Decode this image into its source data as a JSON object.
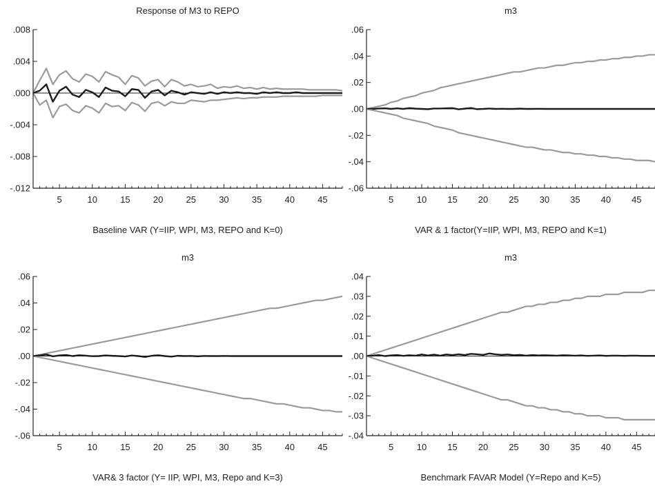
{
  "colors": {
    "irf": "#1a1a1a",
    "band": "#9a9a9a",
    "axis": "#222222",
    "zero": "#222222"
  },
  "chart_data": [
    {
      "type": "line",
      "title": "Response of M3 to REPO",
      "caption": "Baseline VAR (Y=IIP, WPI, M3, REPO and K=0)",
      "ylim": [
        -0.012,
        0.008
      ],
      "yticks": [
        ".008",
        ".004",
        ".000",
        "-.004",
        "-.008",
        "-.012"
      ],
      "ytick_values": [
        0.008,
        0.004,
        0.0,
        -0.004,
        -0.008,
        -0.012
      ],
      "xlim": [
        1,
        48
      ],
      "xticks": [
        "5",
        "10",
        "15",
        "20",
        "25",
        "30",
        "35",
        "40",
        "45"
      ],
      "series": [
        {
          "role": "band",
          "values": [
            0.0,
            0.0016,
            0.0031,
            0.0011,
            0.0023,
            0.0028,
            0.0018,
            0.0014,
            0.0024,
            0.0021,
            0.0014,
            0.0027,
            0.0023,
            0.002,
            0.0011,
            0.0022,
            0.0019,
            0.0009,
            0.0015,
            0.0017,
            0.0008,
            0.0017,
            0.0014,
            0.0009,
            0.0011,
            0.0008,
            0.0009,
            0.0011,
            0.0006,
            0.0008,
            0.0007,
            0.0009,
            0.0006,
            0.0007,
            0.0005,
            0.0007,
            0.0005,
            0.0006,
            0.0005,
            0.0005,
            0.0005,
            0.0005,
            0.0004,
            0.0004,
            0.0004,
            0.0004,
            0.0004,
            0.0003
          ]
        },
        {
          "role": "irf",
          "values": [
            0.0,
            0.0003,
            0.0011,
            -0.0011,
            0.0003,
            0.0008,
            -0.0002,
            -0.0005,
            0.0004,
            0.0001,
            -0.0005,
            0.0007,
            0.0003,
            0.0002,
            -0.0004,
            0.0005,
            0.0004,
            -0.0006,
            0.0002,
            0.0004,
            -0.0003,
            0.0003,
            0.0001,
            -0.0002,
            0.0001,
            0.0,
            -0.0001,
            0.0001,
            -0.0001,
            0.0001,
            0.0,
            0.0001,
            0.0,
            0.0,
            -0.0001,
            0.0001,
            0.0,
            0.0001,
            0.0,
            0.0,
            0.0001,
            0.0,
            0.0,
            0.0,
            0.0,
            0.0,
            0.0,
            0.0
          ]
        },
        {
          "role": "band",
          "values": [
            0.0,
            -0.0015,
            -0.0009,
            -0.0031,
            -0.0017,
            -0.0014,
            -0.0022,
            -0.0025,
            -0.0016,
            -0.0019,
            -0.0025,
            -0.0013,
            -0.0017,
            -0.0016,
            -0.0022,
            -0.0012,
            -0.0015,
            -0.0023,
            -0.0013,
            -0.0011,
            -0.0016,
            -0.0011,
            -0.0013,
            -0.0013,
            -0.0009,
            -0.001,
            -0.0011,
            -0.0009,
            -0.0009,
            -0.0008,
            -0.0007,
            -0.0006,
            -0.0007,
            -0.0006,
            -0.0006,
            -0.0005,
            -0.0005,
            -0.0005,
            -0.0004,
            -0.0004,
            -0.0004,
            -0.0004,
            -0.0004,
            -0.0004,
            -0.0003,
            -0.0003,
            -0.0003,
            -0.0003
          ]
        }
      ]
    },
    {
      "type": "line",
      "title": "m3",
      "caption": "VAR & 1 factor(Y=IIP, WPI, M3, REPO and K=1)",
      "ylim": [
        -0.06,
        0.06
      ],
      "yticks": [
        ".06",
        ".04",
        ".02",
        ".00",
        "-.02",
        "-.04",
        "-.06"
      ],
      "ytick_values": [
        0.06,
        0.04,
        0.02,
        0.0,
        -0.02,
        -0.04,
        -0.06
      ],
      "xlim": [
        1,
        48
      ],
      "xticks": [
        "5",
        "10",
        "15",
        "20",
        "25",
        "30",
        "35",
        "40",
        "45"
      ],
      "series": [
        {
          "role": "band",
          "values": [
            0.0,
            0.001,
            0.002,
            0.003,
            0.005,
            0.006,
            0.008,
            0.009,
            0.01,
            0.012,
            0.013,
            0.014,
            0.016,
            0.017,
            0.018,
            0.019,
            0.02,
            0.021,
            0.022,
            0.023,
            0.024,
            0.025,
            0.026,
            0.027,
            0.028,
            0.028,
            0.029,
            0.03,
            0.031,
            0.031,
            0.032,
            0.033,
            0.033,
            0.034,
            0.035,
            0.035,
            0.036,
            0.036,
            0.037,
            0.037,
            0.038,
            0.038,
            0.039,
            0.039,
            0.04,
            0.04,
            0.041,
            0.041
          ]
        },
        {
          "role": "irf",
          "values": [
            0.0,
            0.0,
            0.0003,
            0.0005,
            0.0,
            0.0004,
            0.0,
            0.0006,
            0.0002,
            0.0,
            -0.0002,
            0.0003,
            0.0003,
            0.0005,
            0.0006,
            -0.0003,
            0.0002,
            0.0007,
            -0.0002,
            0.0,
            0.0003,
            0.0,
            0.0001,
            0.0,
            0.0,
            0.0002,
            0.0,
            0.0,
            0.0001,
            0.0,
            0.0,
            0.0,
            0.0,
            0.0,
            0.0,
            0.0,
            0.0,
            0.0,
            0.0,
            0.0,
            0.0,
            0.0,
            0.0,
            0.0,
            0.0,
            0.0,
            0.0,
            0.0
          ]
        },
        {
          "role": "band",
          "values": [
            0.0,
            -0.001,
            -0.002,
            -0.003,
            -0.004,
            -0.005,
            -0.007,
            -0.008,
            -0.009,
            -0.01,
            -0.011,
            -0.013,
            -0.014,
            -0.015,
            -0.016,
            -0.018,
            -0.019,
            -0.02,
            -0.021,
            -0.022,
            -0.023,
            -0.024,
            -0.025,
            -0.026,
            -0.027,
            -0.028,
            -0.029,
            -0.029,
            -0.03,
            -0.031,
            -0.031,
            -0.032,
            -0.033,
            -0.033,
            -0.034,
            -0.034,
            -0.035,
            -0.035,
            -0.036,
            -0.036,
            -0.037,
            -0.037,
            -0.038,
            -0.038,
            -0.039,
            -0.039,
            -0.039,
            -0.04
          ]
        }
      ]
    },
    {
      "type": "line",
      "title": "m3",
      "caption": "VAR& 3 factor (Y= IIP, WPI, M3, Repo and K=3)",
      "ylim": [
        -0.06,
        0.06
      ],
      "yticks": [
        ".06",
        ".04",
        ".02",
        ".00",
        "-.02",
        "-.04",
        "-.06"
      ],
      "ytick_values": [
        0.06,
        0.04,
        0.02,
        0.0,
        -0.02,
        -0.04,
        -0.06
      ],
      "xlim": [
        1,
        48
      ],
      "xticks": [
        "5",
        "10",
        "15",
        "20",
        "25",
        "30",
        "35",
        "40",
        "45"
      ],
      "series": [
        {
          "role": "band",
          "values": [
            0.0,
            0.001,
            0.002,
            0.003,
            0.004,
            0.005,
            0.006,
            0.007,
            0.008,
            0.009,
            0.01,
            0.011,
            0.012,
            0.013,
            0.014,
            0.015,
            0.016,
            0.017,
            0.018,
            0.019,
            0.02,
            0.021,
            0.022,
            0.023,
            0.024,
            0.025,
            0.026,
            0.027,
            0.028,
            0.029,
            0.03,
            0.031,
            0.032,
            0.033,
            0.034,
            0.035,
            0.036,
            0.036,
            0.037,
            0.038,
            0.039,
            0.04,
            0.041,
            0.042,
            0.042,
            0.043,
            0.044,
            0.045
          ]
        },
        {
          "role": "irf",
          "values": [
            0.0,
            0.0005,
            0.0012,
            -0.0002,
            0.0005,
            0.0008,
            0.0,
            0.0006,
            0.0003,
            -0.0001,
            0.0,
            0.0005,
            0.0002,
            0.0,
            -0.0003,
            0.0004,
            0.0,
            -0.0007,
            0.0002,
            0.0006,
            0.0,
            -0.0004,
            0.0002,
            0.0,
            0.0001,
            -0.0002,
            0.0001,
            0.0,
            0.0,
            0.0001,
            0.0,
            0.0,
            0.0,
            0.0,
            0.0,
            0.0,
            0.0,
            0.0,
            0.0,
            0.0,
            0.0,
            0.0,
            0.0,
            0.0,
            0.0,
            0.0,
            0.0,
            0.0
          ]
        },
        {
          "role": "band",
          "values": [
            0.0,
            -0.001,
            -0.002,
            -0.003,
            -0.004,
            -0.005,
            -0.006,
            -0.007,
            -0.008,
            -0.009,
            -0.01,
            -0.011,
            -0.012,
            -0.013,
            -0.014,
            -0.015,
            -0.016,
            -0.017,
            -0.018,
            -0.019,
            -0.02,
            -0.021,
            -0.022,
            -0.023,
            -0.024,
            -0.025,
            -0.026,
            -0.027,
            -0.028,
            -0.029,
            -0.03,
            -0.031,
            -0.032,
            -0.032,
            -0.033,
            -0.034,
            -0.035,
            -0.036,
            -0.036,
            -0.037,
            -0.038,
            -0.039,
            -0.039,
            -0.04,
            -0.041,
            -0.041,
            -0.042,
            -0.042
          ]
        }
      ]
    },
    {
      "type": "line",
      "title": "m3",
      "caption": "Benchmark FAVAR Model (Y=Repo and K=5)",
      "ylim": [
        -0.04,
        0.04
      ],
      "yticks": [
        ".04",
        ".03",
        ".02",
        ".01",
        ".00",
        "-.01",
        "-.02",
        "-.03",
        "-.04"
      ],
      "ytick_values": [
        0.04,
        0.03,
        0.02,
        0.01,
        0.0,
        -0.01,
        -0.02,
        -0.03,
        -0.04
      ],
      "xlim": [
        1,
        48
      ],
      "xticks": [
        "5",
        "10",
        "15",
        "20",
        "25",
        "30",
        "35",
        "40",
        "45"
      ],
      "series": [
        {
          "role": "band",
          "values": [
            0.0,
            0.001,
            0.002,
            0.003,
            0.004,
            0.005,
            0.006,
            0.007,
            0.008,
            0.009,
            0.01,
            0.011,
            0.012,
            0.013,
            0.014,
            0.015,
            0.016,
            0.017,
            0.018,
            0.019,
            0.02,
            0.021,
            0.022,
            0.022,
            0.023,
            0.024,
            0.025,
            0.025,
            0.026,
            0.026,
            0.027,
            0.027,
            0.028,
            0.028,
            0.029,
            0.029,
            0.03,
            0.03,
            0.03,
            0.031,
            0.031,
            0.031,
            0.032,
            0.032,
            0.032,
            0.032,
            0.033,
            0.033
          ]
        },
        {
          "role": "irf",
          "values": [
            0.0,
            0.0002,
            0.0005,
            0.0,
            0.0003,
            0.0005,
            0.0001,
            0.0004,
            0.0002,
            0.0008,
            0.0003,
            0.0007,
            0.0002,
            0.0008,
            0.0005,
            0.0009,
            0.0005,
            0.0011,
            0.0009,
            0.0006,
            0.0013,
            0.0009,
            0.0006,
            0.0008,
            0.0004,
            0.0006,
            0.0002,
            0.0005,
            0.0003,
            0.0004,
            0.0003,
            0.0002,
            0.0004,
            0.0003,
            0.0002,
            0.0003,
            0.0001,
            0.0002,
            0.0003,
            0.0001,
            0.0002,
            0.0002,
            0.0001,
            0.0002,
            0.0002,
            0.0001,
            0.0001,
            0.0001
          ]
        },
        {
          "role": "band",
          "values": [
            0.0,
            -0.001,
            -0.002,
            -0.003,
            -0.004,
            -0.005,
            -0.006,
            -0.007,
            -0.008,
            -0.009,
            -0.01,
            -0.011,
            -0.012,
            -0.013,
            -0.014,
            -0.015,
            -0.016,
            -0.017,
            -0.018,
            -0.019,
            -0.02,
            -0.021,
            -0.022,
            -0.022,
            -0.023,
            -0.024,
            -0.025,
            -0.025,
            -0.026,
            -0.026,
            -0.027,
            -0.027,
            -0.028,
            -0.028,
            -0.029,
            -0.029,
            -0.03,
            -0.03,
            -0.03,
            -0.031,
            -0.031,
            -0.031,
            -0.032,
            -0.032,
            -0.032,
            -0.032,
            -0.032,
            -0.032
          ]
        }
      ]
    }
  ]
}
